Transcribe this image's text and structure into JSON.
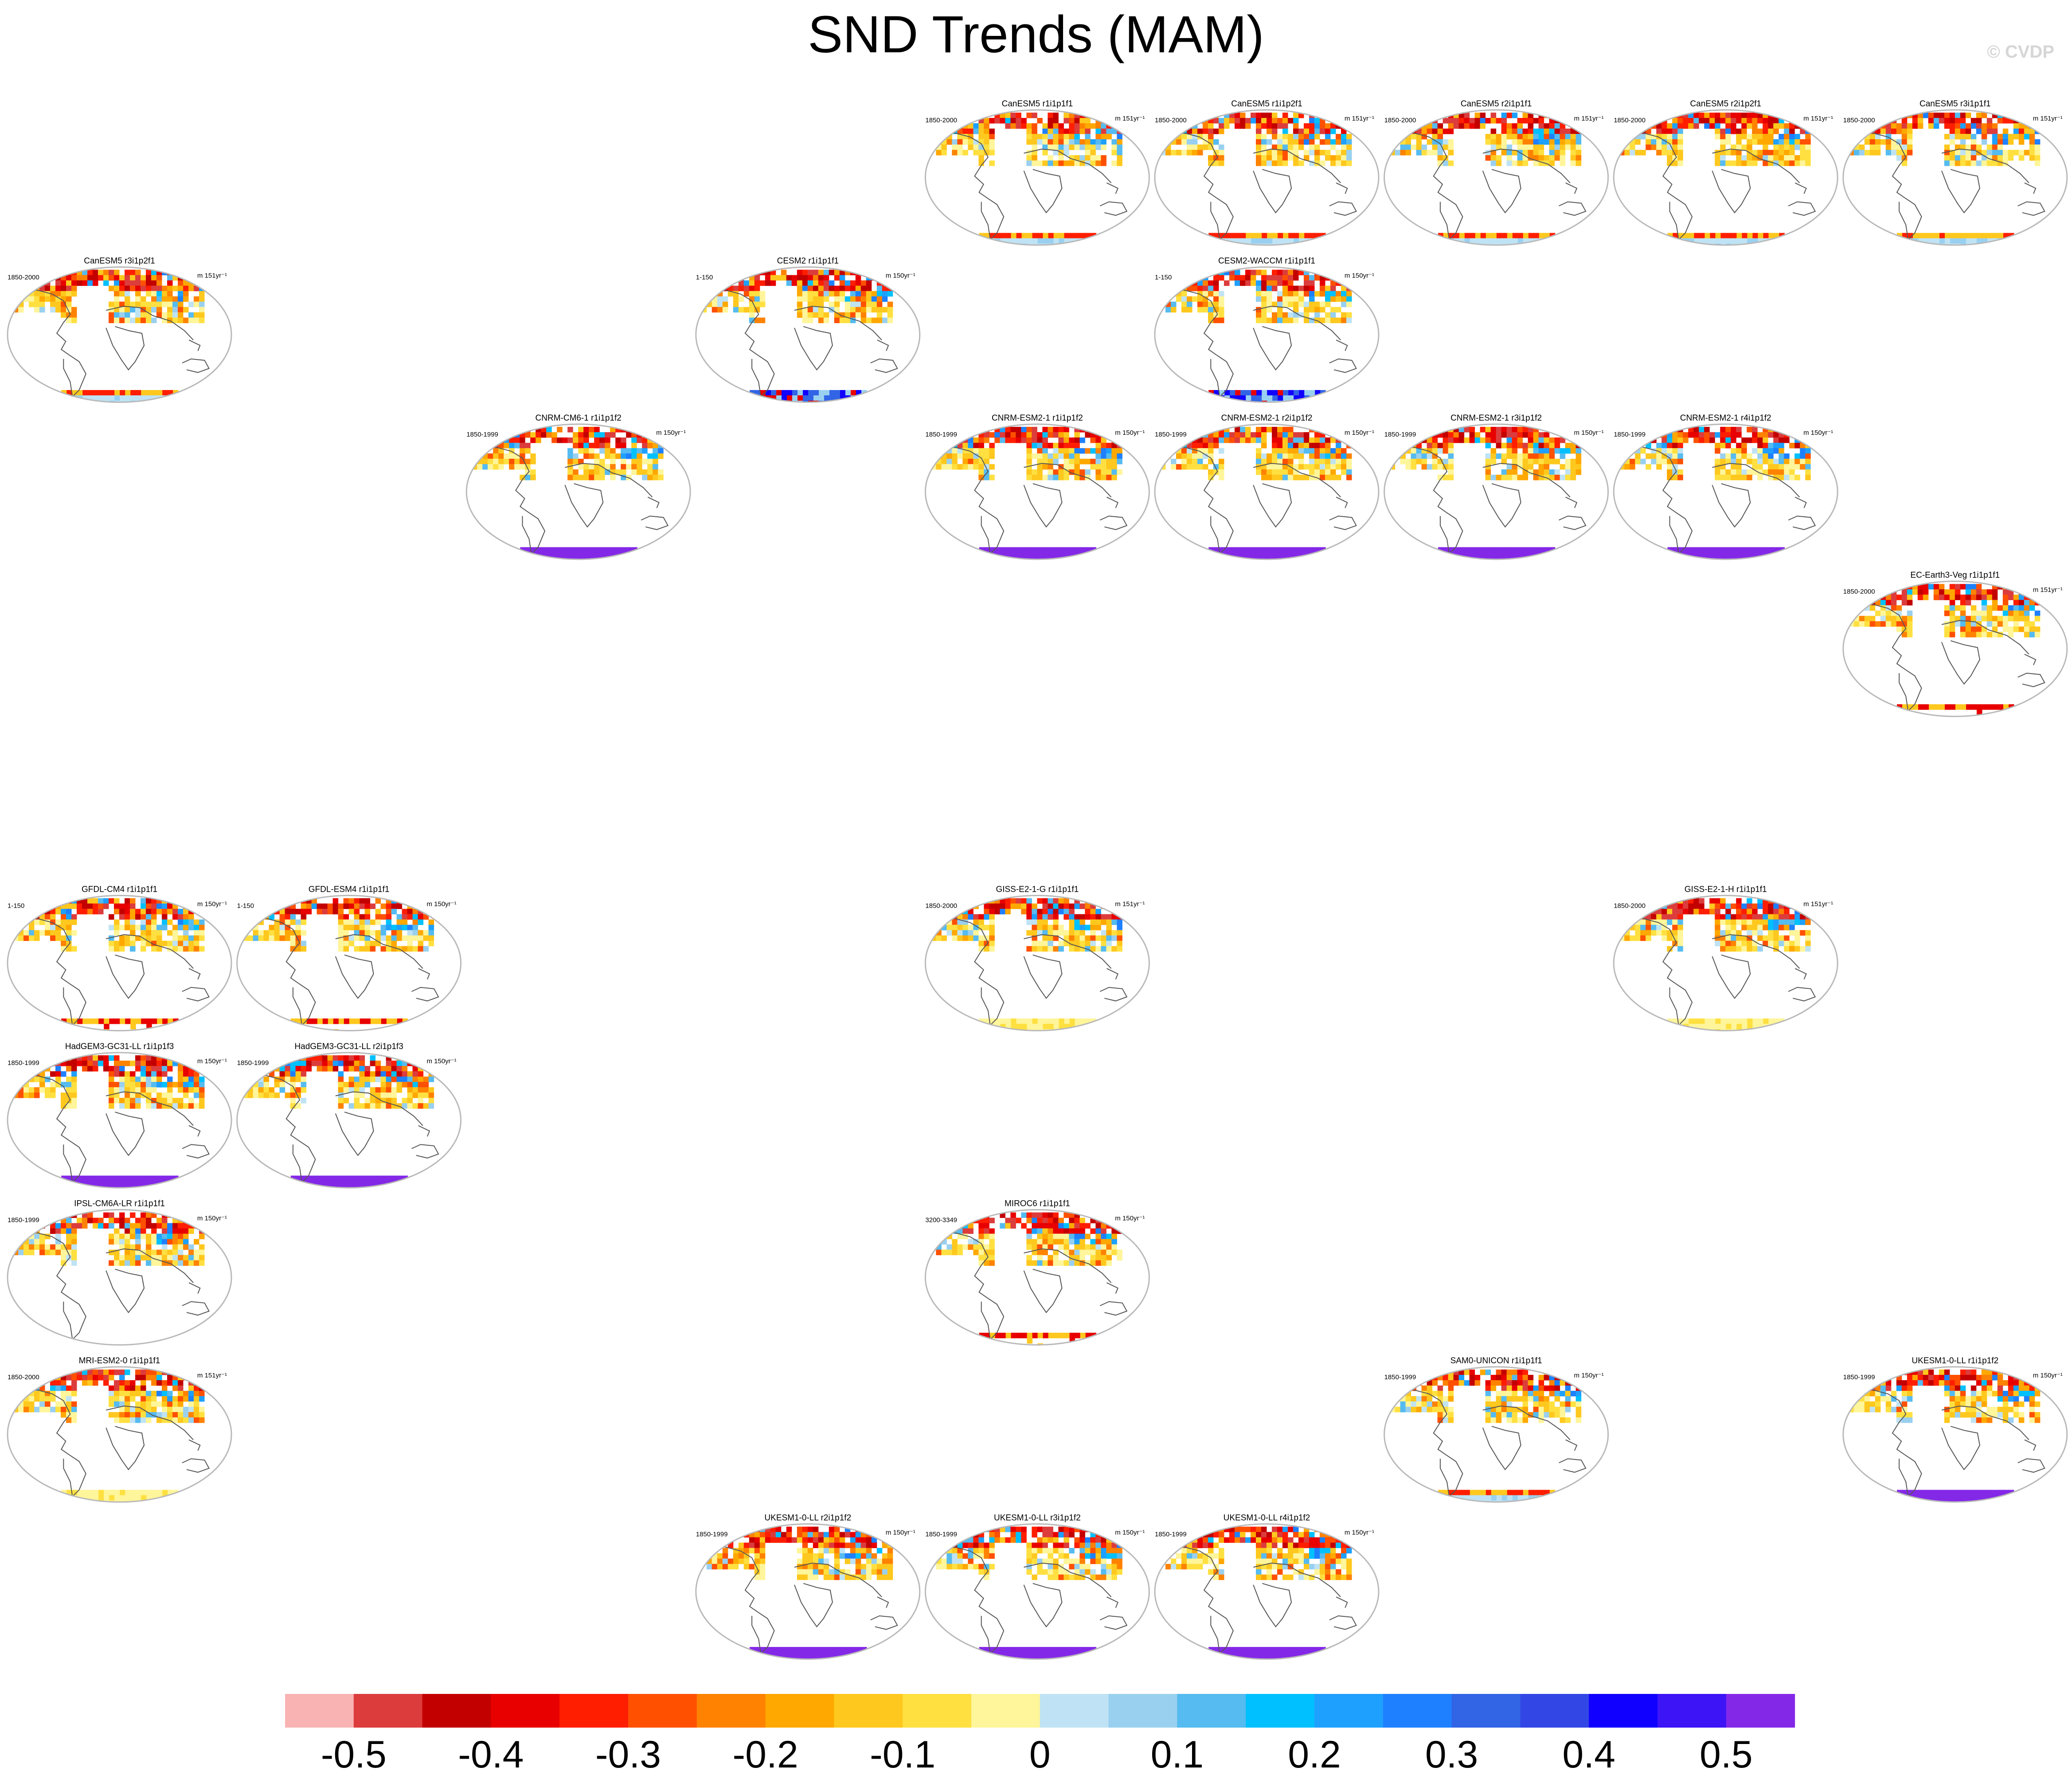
{
  "title": "SND Trends (MAM)",
  "credit": "© CVDP",
  "colors": {
    "map_outline": "#b9b9b9",
    "coast": "#555555",
    "text": "#000000"
  },
  "colorbar": {
    "colors": [
      "#f9b3b3",
      "#dc3c3c",
      "#c30000",
      "#e80000",
      "#ff1e00",
      "#ff5000",
      "#ff8200",
      "#ffa800",
      "#ffc81e",
      "#ffe040",
      "#fff59a",
      "#bfe3f4",
      "#99d0f0",
      "#55bbf0",
      "#00c0ff",
      "#1ea0ff",
      "#1e80ff",
      "#3264e6",
      "#3246e6",
      "#1000ff",
      "#3c14f6",
      "#8428e8"
    ],
    "tick_labels": [
      "-0.5",
      "-0.4",
      "-0.3",
      "-0.2",
      "-0.1",
      "0",
      "0.1",
      "0.2",
      "0.3",
      "0.4",
      "0.5"
    ]
  },
  "chart_data": {
    "type": "map-panel-grid",
    "title": "SND Trends (MAM)",
    "variable": "SND",
    "season": "MAM",
    "color_scale": {
      "min": -0.5,
      "max": 0.5,
      "step": 0.05
    },
    "panels": [
      {
        "name": "CanESM5 r1i1p1f1",
        "period": "1850-2000",
        "units": "m 151yr⁻¹",
        "row": 0,
        "col": 4,
        "ant": "mixed"
      },
      {
        "name": "CanESM5 r1i1p2f1",
        "period": "1850-2000",
        "units": "m 151yr⁻¹",
        "row": 0,
        "col": 5,
        "ant": "mixed"
      },
      {
        "name": "CanESM5 r2i1p1f1",
        "period": "1850-2000",
        "units": "m 151yr⁻¹",
        "row": 0,
        "col": 6,
        "ant": "mixed"
      },
      {
        "name": "CanESM5 r2i1p2f1",
        "period": "1850-2000",
        "units": "m 151yr⁻¹",
        "row": 0,
        "col": 7,
        "ant": "mixed"
      },
      {
        "name": "CanESM5 r3i1p1f1",
        "period": "1850-2000",
        "units": "m 151yr⁻¹",
        "row": 0,
        "col": 8,
        "ant": "mixed"
      },
      {
        "name": "CanESM5 r3i1p2f1",
        "period": "1850-2000",
        "units": "m 151yr⁻¹",
        "row": 1,
        "col": 0,
        "ant": "mixed"
      },
      {
        "name": "CESM2 r1i1p1f1",
        "period": "1-150",
        "units": "m 150yr⁻¹",
        "row": 1,
        "col": 3,
        "ant": "blue"
      },
      {
        "name": "CESM2-WACCM r1i1p1f1",
        "period": "1-150",
        "units": "m 150yr⁻¹",
        "row": 1,
        "col": 5,
        "ant": "blue"
      },
      {
        "name": "CNRM-CM6-1 r1i1p1f2",
        "period": "1850-1999",
        "units": "m 150yr⁻¹",
        "row": 2,
        "col": 2,
        "ant": "purple"
      },
      {
        "name": "CNRM-ESM2-1 r1i1p1f2",
        "period": "1850-1999",
        "units": "m 150yr⁻¹",
        "row": 2,
        "col": 4,
        "ant": "purple"
      },
      {
        "name": "CNRM-ESM2-1 r2i1p1f2",
        "period": "1850-1999",
        "units": "m 150yr⁻¹",
        "row": 2,
        "col": 5,
        "ant": "purple"
      },
      {
        "name": "CNRM-ESM2-1 r3i1p1f2",
        "period": "1850-1999",
        "units": "m 150yr⁻¹",
        "row": 2,
        "col": 6,
        "ant": "purple"
      },
      {
        "name": "CNRM-ESM2-1 r4i1p1f2",
        "period": "1850-1999",
        "units": "m 150yr⁻¹",
        "row": 2,
        "col": 7,
        "ant": "purple"
      },
      {
        "name": "EC-Earth3-Veg r1i1p1f1",
        "period": "1850-2000",
        "units": "m 151yr⁻¹",
        "row": 3,
        "col": 8,
        "ant": "edge"
      },
      {
        "name": "GFDL-CM4 r1i1p1f1",
        "period": "1-150",
        "units": "m 150yr⁻¹",
        "row": 5,
        "col": 0,
        "ant": "edge"
      },
      {
        "name": "GFDL-ESM4 r1i1p1f1",
        "period": "1-150",
        "units": "m 150yr⁻¹",
        "row": 5,
        "col": 1,
        "ant": "edge"
      },
      {
        "name": "GISS-E2-1-G r1i1p1f1",
        "period": "1850-2000",
        "units": "m 151yr⁻¹",
        "row": 5,
        "col": 4,
        "ant": "yellow"
      },
      {
        "name": "GISS-E2-1-H r1i1p1f1",
        "period": "1850-2000",
        "units": "m 151yr⁻¹",
        "row": 5,
        "col": 7,
        "ant": "yellow"
      },
      {
        "name": "HadGEM3-GC31-LL r1i1p1f3",
        "period": "1850-1999",
        "units": "m 150yr⁻¹",
        "row": 6,
        "col": 0,
        "ant": "purple"
      },
      {
        "name": "HadGEM3-GC31-LL r2i1p1f3",
        "period": "1850-1999",
        "units": "m 150yr⁻¹",
        "row": 6,
        "col": 1,
        "ant": "purple"
      },
      {
        "name": "IPSL-CM6A-LR r1i1p1f1",
        "period": "1850-1999",
        "units": "m 150yr⁻¹",
        "row": 7,
        "col": 0,
        "ant": "none"
      },
      {
        "name": "MIROC6 r1i1p1f1",
        "period": "3200-3349",
        "units": "m 150yr⁻¹",
        "row": 7,
        "col": 4,
        "ant": "edge"
      },
      {
        "name": "MRI-ESM2-0 r1i1p1f1",
        "period": "1850-2000",
        "units": "m 151yr⁻¹",
        "row": 8,
        "col": 0,
        "ant": "yellow"
      },
      {
        "name": "SAM0-UNICON r1i1p1f1",
        "period": "1850-1999",
        "units": "m 150yr⁻¹",
        "row": 8,
        "col": 6,
        "ant": "mixed"
      },
      {
        "name": "UKESM1-0-LL r1i1p1f2",
        "period": "1850-1999",
        "units": "m 150yr⁻¹",
        "row": 8,
        "col": 8,
        "ant": "purple"
      },
      {
        "name": "UKESM1-0-LL r2i1p1f2",
        "period": "1850-1999",
        "units": "m 150yr⁻¹",
        "row": 9,
        "col": 3,
        "ant": "purple"
      },
      {
        "name": "UKESM1-0-LL r3i1p1f2",
        "period": "1850-1999",
        "units": "m 150yr⁻¹",
        "row": 9,
        "col": 4,
        "ant": "purple"
      },
      {
        "name": "UKESM1-0-LL r4i1p1f2",
        "period": "1850-1999",
        "units": "m 150yr⁻¹",
        "row": 9,
        "col": 5,
        "ant": "purple"
      }
    ]
  }
}
